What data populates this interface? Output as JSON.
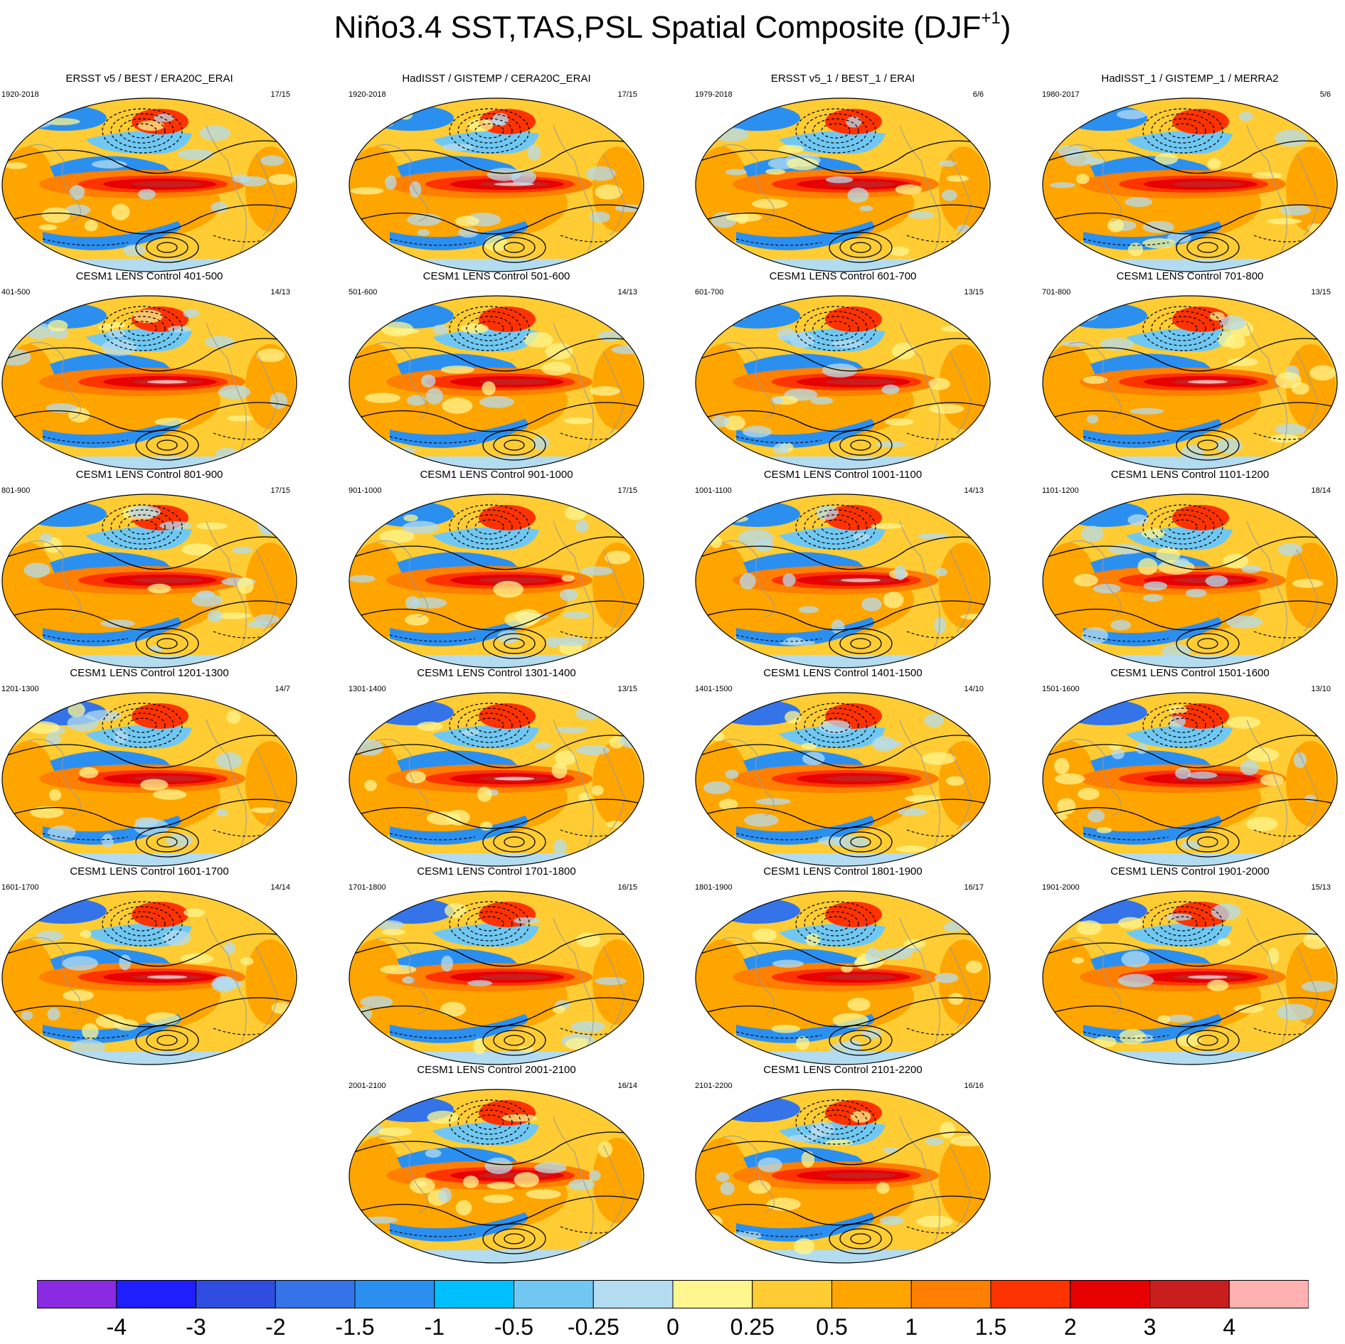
{
  "title": {
    "main": "Niño3.4 SST,TAS,PSL Spatial Composite (DJF",
    "sup": "+1",
    "close": ")"
  },
  "chart_data": {
    "type": "heatmap",
    "panels": [
      {
        "title": "ERSST v5 / BEST / ERA20C_ERAI",
        "years": "1920-2018",
        "count": "17/15"
      },
      {
        "title": "HadISST / GISTEMP / CERA20C_ERAI",
        "years": "1920-2018",
        "count": "17/15"
      },
      {
        "title": "ERSST v5_1 / BEST_1 / ERAI",
        "years": "1979-2018",
        "count": "6/6"
      },
      {
        "title": "HadISST_1 / GISTEMP_1 / MERRA2",
        "years": "1980-2017",
        "count": "5/6"
      },
      {
        "title": "CESM1 LENS Control 401-500",
        "years": "401-500",
        "count": "14/13"
      },
      {
        "title": "CESM1 LENS Control 501-600",
        "years": "501-600",
        "count": "14/13"
      },
      {
        "title": "CESM1 LENS Control 601-700",
        "years": "601-700",
        "count": "13/15"
      },
      {
        "title": "CESM1 LENS Control 701-800",
        "years": "701-800",
        "count": "13/15"
      },
      {
        "title": "CESM1 LENS Control 801-900",
        "years": "801-900",
        "count": "17/15"
      },
      {
        "title": "CESM1 LENS Control 901-1000",
        "years": "901-1000",
        "count": "17/15"
      },
      {
        "title": "CESM1 LENS Control 1001-1100",
        "years": "1001-1100",
        "count": "14/13"
      },
      {
        "title": "CESM1 LENS Control 1101-1200",
        "years": "1101-1200",
        "count": "18/14"
      },
      {
        "title": "CESM1 LENS Control 1201-1300",
        "years": "1201-1300",
        "count": "14/7"
      },
      {
        "title": "CESM1 LENS Control 1301-1400",
        "years": "1301-1400",
        "count": "13/15"
      },
      {
        "title": "CESM1 LENS Control 1401-1500",
        "years": "1401-1500",
        "count": "14/10"
      },
      {
        "title": "CESM1 LENS Control 1501-1600",
        "years": "1501-1600",
        "count": "13/10"
      },
      {
        "title": "CESM1 LENS Control 1601-1700",
        "years": "1601-1700",
        "count": "14/14"
      },
      {
        "title": "CESM1 LENS Control 1701-1800",
        "years": "1701-1800",
        "count": "16/15"
      },
      {
        "title": "CESM1 LENS Control 1801-1900",
        "years": "1801-1900",
        "count": "16/17"
      },
      {
        "title": "CESM1 LENS Control 1901-2000",
        "years": "1901-2000",
        "count": "15/13"
      },
      {
        "title": "CESM1 LENS Control 2001-2100",
        "years": "2001-2100",
        "count": "16/14"
      },
      {
        "title": "CESM1 LENS Control 2101-2200",
        "years": "2101-2200",
        "count": "16/16"
      }
    ],
    "colorbar": {
      "labels": [
        "-4",
        "-3",
        "-2",
        "-1.5",
        "-1",
        "-0.5",
        "-0.25",
        "0",
        "0.25",
        "0.5",
        "1",
        "1.5",
        "2",
        "3",
        "4"
      ],
      "colors": [
        "#8a2be2",
        "#1e1eff",
        "#2f4de0",
        "#3474e8",
        "#2b8ff0",
        "#00bfff",
        "#70c8f2",
        "#b4dcf0",
        "#fff68f",
        "#ffcc33",
        "#ffa500",
        "#ff7f00",
        "#ff3300",
        "#e60000",
        "#c81e1e",
        "#ffb0b0"
      ]
    }
  }
}
